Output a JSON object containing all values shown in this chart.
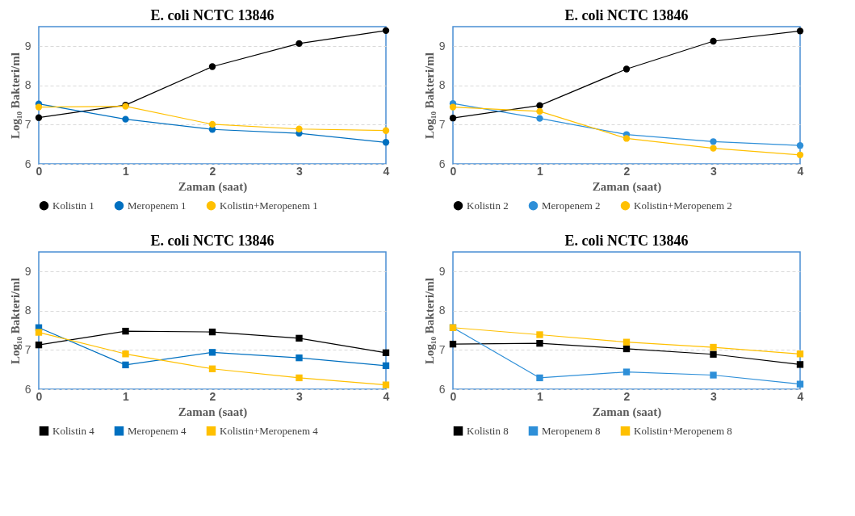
{
  "chart_data": [
    {
      "type": "line",
      "title": "E. coli NCTC 13846",
      "xlabel": "Zaman (saat)",
      "ylabel": "Log₁₀ Bakteri/ml",
      "x": [
        0,
        1,
        2,
        3,
        4
      ],
      "xlim": [
        0,
        4
      ],
      "xticks": [
        0,
        1,
        2,
        3,
        4
      ],
      "ylim": [
        6,
        9.5
      ],
      "yticks": [
        6,
        7,
        8,
        9
      ],
      "grid": "y",
      "legend": "bottom",
      "marker": "circle",
      "series": [
        {
          "name": "Kolistin 1",
          "color": "#000000",
          "values": [
            7.18,
            7.5,
            8.48,
            9.07,
            9.4
          ]
        },
        {
          "name": "Meropenem 1",
          "color": "#0070c0",
          "values": [
            7.53,
            7.14,
            6.88,
            6.78,
            6.55
          ]
        },
        {
          "name": "Kolistin+Meropenem 1",
          "color": "#ffc000",
          "values": [
            7.45,
            7.47,
            7.01,
            6.89,
            6.85
          ]
        }
      ]
    },
    {
      "type": "line",
      "title": "E. coli NCTC 13846",
      "xlabel": "Zaman (saat)",
      "ylabel": "Log₁₀ Bakteri/ml",
      "x": [
        0,
        1,
        2,
        3,
        4
      ],
      "xlim": [
        0,
        4
      ],
      "xticks": [
        0,
        1,
        2,
        3,
        4
      ],
      "ylim": [
        6,
        9.5
      ],
      "yticks": [
        6,
        7,
        8,
        9
      ],
      "grid": "y",
      "legend": "bottom",
      "marker": "circle",
      "series": [
        {
          "name": "Kolistin 2",
          "color": "#000000",
          "values": [
            7.17,
            7.49,
            8.42,
            9.13,
            9.39
          ]
        },
        {
          "name": "Meropenem 2",
          "color": "#2e8fd8",
          "values": [
            7.54,
            7.16,
            6.75,
            6.57,
            6.47
          ]
        },
        {
          "name": "Kolistin+Meropenem 2",
          "color": "#ffc000",
          "values": [
            7.45,
            7.34,
            6.65,
            6.4,
            6.23
          ]
        }
      ]
    },
    {
      "type": "line",
      "title": "E. coli NCTC 13846",
      "xlabel": "Zaman (saat)",
      "ylabel": "Log₁₀ Bakteri/ml",
      "x": [
        0,
        1,
        2,
        3,
        4
      ],
      "xlim": [
        0,
        4
      ],
      "xticks": [
        0,
        1,
        2,
        3,
        4
      ],
      "ylim": [
        6,
        9.5
      ],
      "yticks": [
        6,
        7,
        8,
        9
      ],
      "grid": "y",
      "legend": "bottom",
      "marker": "square",
      "series": [
        {
          "name": "Kolistin 4",
          "color": "#000000",
          "values": [
            7.13,
            7.48,
            7.46,
            7.3,
            6.93
          ]
        },
        {
          "name": "Meropenem 4",
          "color": "#0070c0",
          "values": [
            7.57,
            6.62,
            6.94,
            6.8,
            6.6
          ]
        },
        {
          "name": "Kolistin+Meropenem 4",
          "color": "#ffc000",
          "values": [
            7.45,
            6.9,
            6.52,
            6.29,
            6.11
          ]
        }
      ]
    },
    {
      "type": "line",
      "title": "E. coli NCTC 13846",
      "xlabel": "Zaman (saat)",
      "ylabel": "Log₁₀ Bakteri/ml",
      "x": [
        0,
        1,
        2,
        3,
        4
      ],
      "xlim": [
        0,
        4
      ],
      "xticks": [
        0,
        1,
        2,
        3,
        4
      ],
      "ylim": [
        6,
        9.5
      ],
      "yticks": [
        6,
        7,
        8,
        9
      ],
      "grid": "y",
      "legend": "bottom",
      "marker": "square",
      "series": [
        {
          "name": "Kolistin 8",
          "color": "#000000",
          "values": [
            7.15,
            7.17,
            7.03,
            6.89,
            6.63
          ]
        },
        {
          "name": "Meropenem 8",
          "color": "#2e8fd8",
          "values": [
            7.57,
            6.29,
            6.44,
            6.36,
            6.13
          ]
        },
        {
          "name": "Kolistin+Meropenem 8",
          "color": "#ffc000",
          "values": [
            7.57,
            7.39,
            7.2,
            7.07,
            6.9
          ]
        }
      ]
    }
  ]
}
